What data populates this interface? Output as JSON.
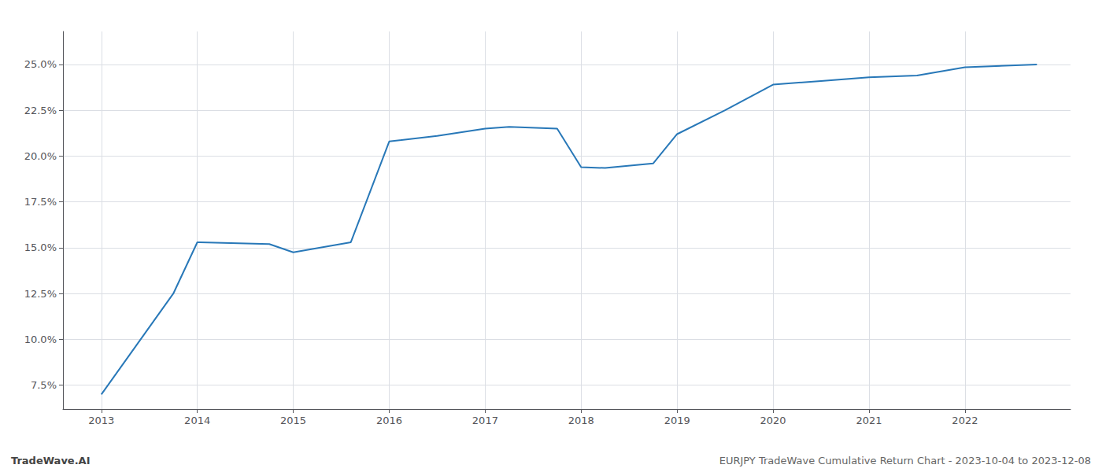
{
  "chart_data": {
    "type": "line",
    "x": [
      2013.0,
      2013.75,
      2014.0,
      2014.75,
      2015.0,
      2015.6,
      2016.0,
      2016.5,
      2017.0,
      2017.25,
      2017.75,
      2018.0,
      2018.25,
      2018.75,
      2019.0,
      2019.5,
      2020.0,
      2020.5,
      2021.0,
      2021.5,
      2022.0,
      2022.75
    ],
    "values": [
      7.0,
      12.5,
      15.3,
      15.2,
      14.75,
      15.3,
      20.8,
      21.1,
      21.5,
      21.6,
      21.5,
      19.4,
      19.35,
      19.6,
      21.2,
      22.5,
      23.9,
      24.1,
      24.3,
      24.4,
      24.85,
      25.0
    ],
    "color": "#2878b8",
    "xlim": [
      2012.6,
      2023.1
    ],
    "xticks": [
      2013,
      2014,
      2015,
      2016,
      2017,
      2018,
      2019,
      2020,
      2021,
      2022
    ],
    "ylim": [
      6.2,
      26.8
    ],
    "yticks": [
      {
        "value": 7.5,
        "label": "7.5%"
      },
      {
        "value": 10.0,
        "label": "10.0%"
      },
      {
        "value": 12.5,
        "label": "12.5%"
      },
      {
        "value": 15.0,
        "label": "15.0%"
      },
      {
        "value": 17.5,
        "label": "17.5%"
      },
      {
        "value": 20.0,
        "label": "20.0%"
      },
      {
        "value": 22.5,
        "label": "22.5%"
      },
      {
        "value": 25.0,
        "label": "25.0%"
      }
    ],
    "grid": true,
    "annotations": [
      "TradeWave.AI",
      "EURJPY TradeWave Cumulative Return Chart - 2023-10-04 to 2023-12-08"
    ]
  }
}
